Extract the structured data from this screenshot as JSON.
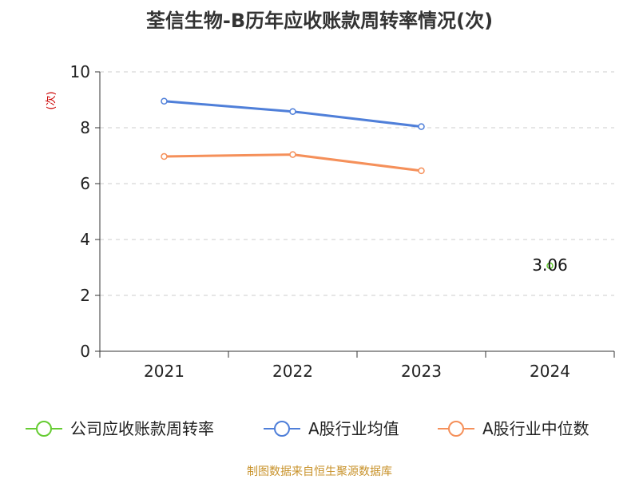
{
  "title": "荃信生物-B历年应收账款周转率情况(次)",
  "footer": {
    "text": "制图数据来自恒生聚源数据库",
    "color": "#c8922a"
  },
  "chart_data": {
    "type": "line",
    "title": "荃信生物-B历年应收账款周转率情况(次)",
    "ylabel": "(次)",
    "xlabel": "",
    "categories": [
      "2021",
      "2022",
      "2023",
      "2024"
    ],
    "ylim": [
      0,
      10
    ],
    "yticks": [
      "0",
      "2",
      "4",
      "6",
      "8",
      "10"
    ],
    "grid": true,
    "legend_position": "bottom",
    "series": [
      {
        "name": "公司应收账款周转率",
        "color": "#66cc33",
        "values": [
          null,
          null,
          null,
          3.06
        ],
        "value_labels": [
          "",
          "",
          "",
          "3.06"
        ]
      },
      {
        "name": "A股行业均值",
        "color": "#4f7fd9",
        "values": [
          8.95,
          8.58,
          8.04,
          null
        ]
      },
      {
        "name": "A股行业中位数",
        "color": "#f5905a",
        "values": [
          6.97,
          7.04,
          6.46,
          null
        ]
      }
    ]
  }
}
